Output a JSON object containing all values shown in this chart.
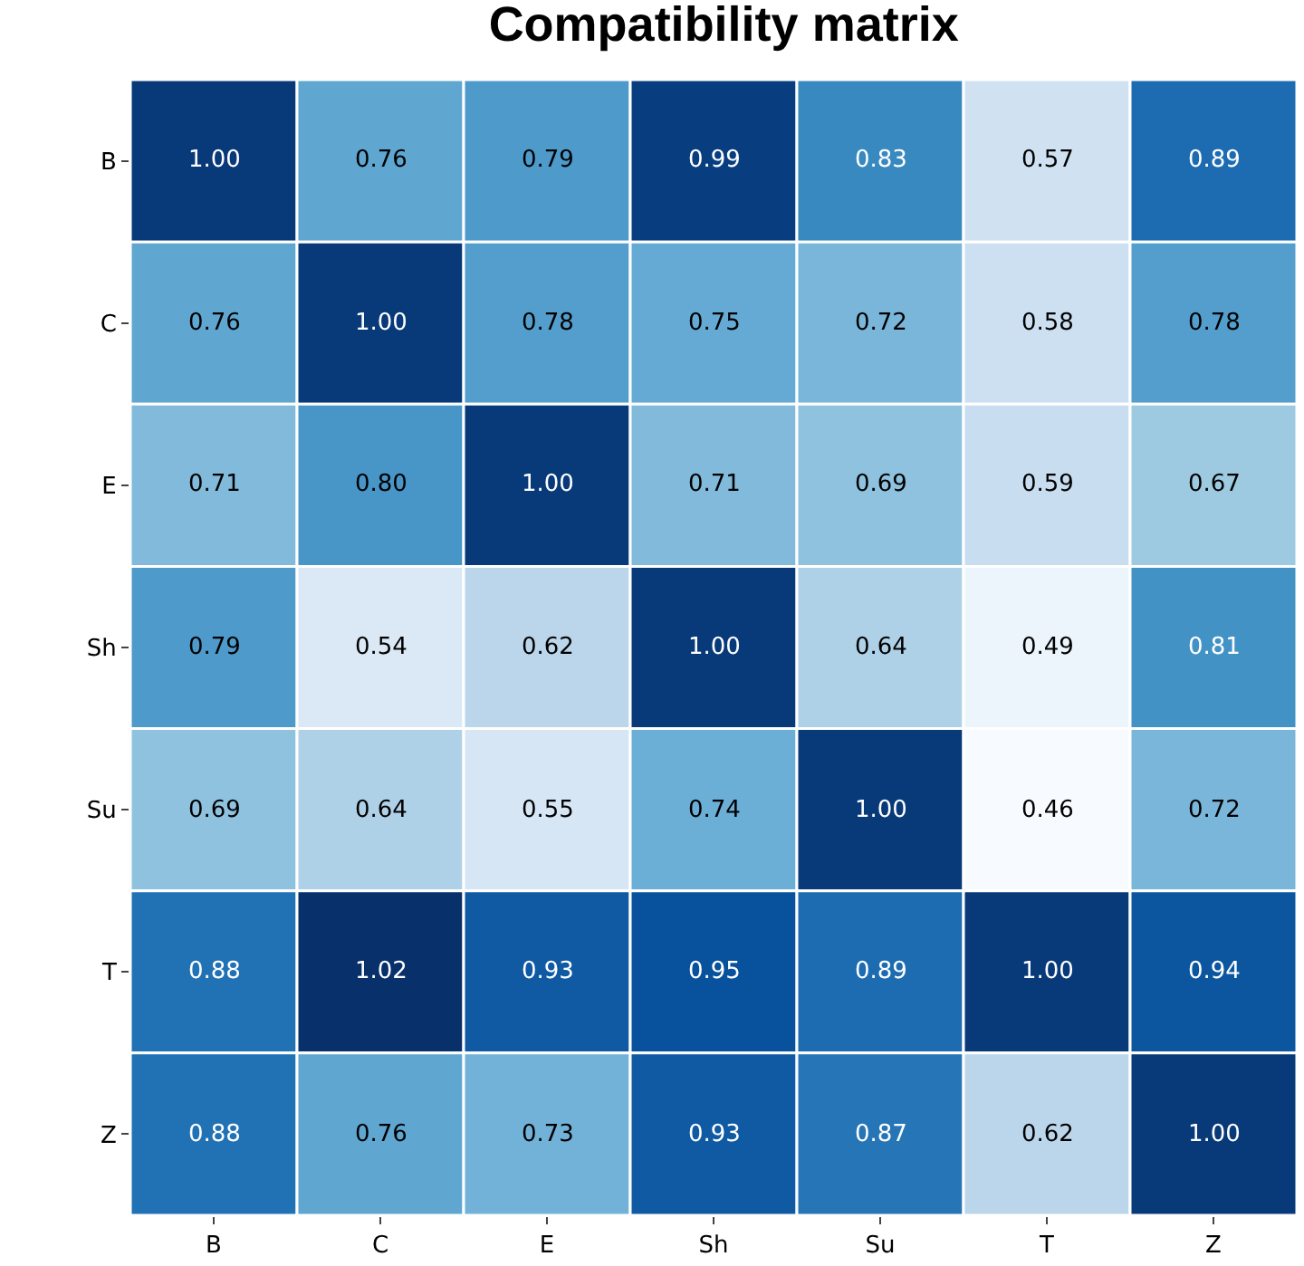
{
  "chart_data": {
    "type": "heatmap",
    "title": "Compatibility matrix",
    "categories": [
      "B",
      "C",
      "E",
      "Sh",
      "Su",
      "T",
      "Z"
    ],
    "y_categories": [
      "B",
      "C",
      "E",
      "Sh",
      "Su",
      "T",
      "Z"
    ],
    "cells": [
      [
        1.0,
        0.76,
        0.79,
        0.99,
        0.83,
        0.57,
        0.89
      ],
      [
        0.76,
        1.0,
        0.78,
        0.75,
        0.72,
        0.58,
        0.78
      ],
      [
        0.71,
        0.8,
        1.0,
        0.71,
        0.69,
        0.59,
        0.67
      ],
      [
        0.79,
        0.54,
        0.62,
        1.0,
        0.64,
        0.49,
        0.81
      ],
      [
        0.69,
        0.64,
        0.55,
        0.74,
        1.0,
        0.46,
        0.72
      ],
      [
        0.88,
        1.02,
        0.93,
        0.95,
        0.89,
        1.0,
        0.94
      ],
      [
        0.88,
        0.76,
        0.73,
        0.93,
        0.87,
        0.62,
        1.0
      ]
    ],
    "cell_labels": [
      [
        "1.00",
        "0.76",
        "0.79",
        "0.99",
        "0.83",
        "0.57",
        "0.89"
      ],
      [
        "0.76",
        "1.00",
        "0.78",
        "0.75",
        "0.72",
        "0.58",
        "0.78"
      ],
      [
        "0.71",
        "0.80",
        "1.00",
        "0.71",
        "0.69",
        "0.59",
        "0.67"
      ],
      [
        "0.79",
        "0.54",
        "0.62",
        "1.00",
        "0.64",
        "0.49",
        "0.81"
      ],
      [
        "0.69",
        "0.64",
        "0.55",
        "0.74",
        "1.00",
        "0.46",
        "0.72"
      ],
      [
        "0.88",
        "1.02",
        "0.93",
        "0.95",
        "0.89",
        "1.00",
        "0.94"
      ],
      [
        "0.88",
        "0.76",
        "0.73",
        "0.93",
        "0.87",
        "0.62",
        "1.00"
      ]
    ]
  }
}
